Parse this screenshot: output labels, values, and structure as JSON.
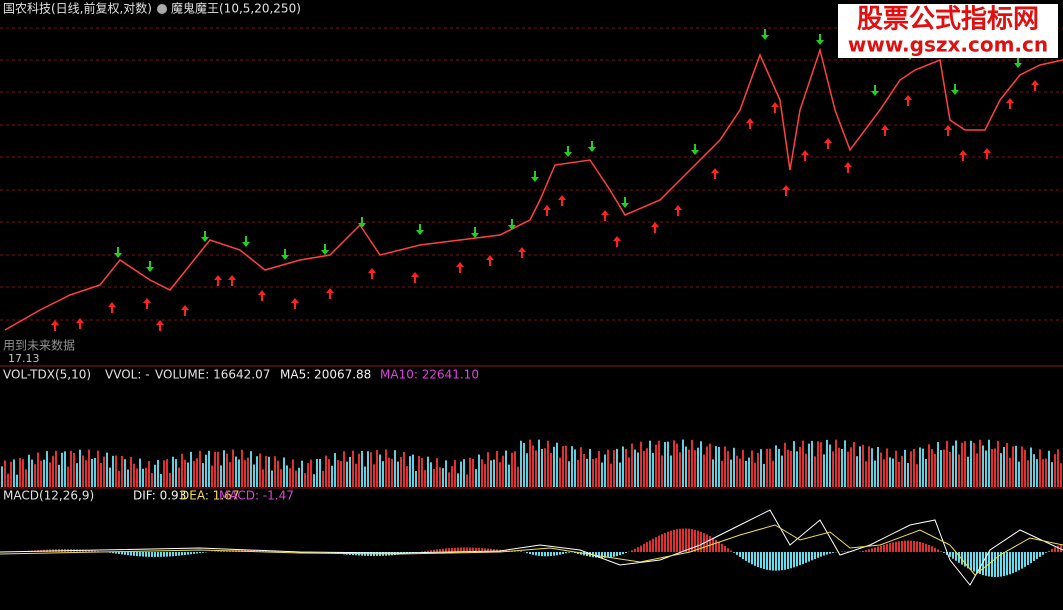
{
  "header": {
    "stock": "国农科技(日线,前复权,对数)",
    "indicator": "魔鬼魔王(10,5,20,250)"
  },
  "watermark": {
    "title": "股票公式指标网",
    "url": "www.gszx.com.cn"
  },
  "price_pane": {
    "note": "用到未来数据",
    "low_label": "17.13"
  },
  "volume_pane": {
    "name": "VOL-TDX(5,10)",
    "vvol": "VVOL: -",
    "volume": "VOLUME: 16642.07",
    "ma5": "MA5: 20067.88",
    "ma10": "MA10: 22641.10"
  },
  "macd_pane": {
    "name": "MACD(12,26,9)",
    "dif": "DIF: 0.93",
    "dea": "DEA: 1.67",
    "macd": "MACD: -1.47"
  }
}
